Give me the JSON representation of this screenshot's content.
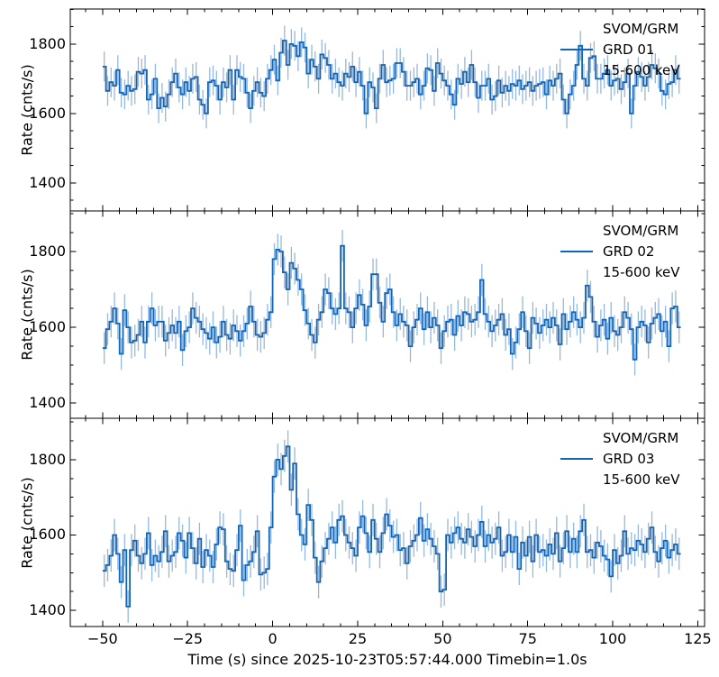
{
  "chart_data": {
    "type": "line",
    "subtype": "step-lightcurve-with-errorbars",
    "title": "",
    "xlabel": "Time (s) since 2025-10-23T05:57:44.000 Timebin=1.0s",
    "ylabel": "Rate (cnts/s)",
    "t0_utc": "2025-10-23T05:57:44.000",
    "t_bin_s": 1.0,
    "t_start": -50,
    "xlim": [
      -59.5,
      127
    ],
    "x_ticks": [
      -50,
      -25,
      0,
      25,
      50,
      75,
      100,
      125
    ],
    "x_tick_labels": [
      "−50",
      "−25",
      "0",
      "25",
      "50",
      "75",
      "100",
      "125"
    ],
    "x_minor_step": 5,
    "y_ticks": [
      1400,
      1600,
      1800
    ],
    "y_minor_step": 50,
    "grid": false,
    "legend_position": "upper right",
    "colors": {
      "line": "#1464b4",
      "errorbar": "rgba(20,100,180,0.45)",
      "spine": "#000000",
      "text": "#000000"
    },
    "panels": [
      {
        "name": "GRD 01",
        "legend": [
          "SVOM/GRM",
          "GRD 01",
          "15-600 keV"
        ],
        "ylim": [
          1319,
          1901
        ],
        "yerr": 43,
        "rates": [
          1735,
          1665,
          1690,
          1680,
          1725,
          1660,
          1655,
          1680,
          1665,
          1670,
          1720,
          1715,
          1725,
          1640,
          1655,
          1700,
          1615,
          1645,
          1620,
          1655,
          1690,
          1715,
          1675,
          1655,
          1690,
          1665,
          1700,
          1705,
          1640,
          1625,
          1600,
          1690,
          1695,
          1680,
          1640,
          1690,
          1675,
          1725,
          1640,
          1725,
          1705,
          1700,
          1660,
          1615,
          1665,
          1690,
          1660,
          1650,
          1700,
          1725,
          1755,
          1695,
          1775,
          1810,
          1740,
          1800,
          1795,
          1765,
          1805,
          1790,
          1715,
          1755,
          1735,
          1700,
          1770,
          1760,
          1740,
          1700,
          1715,
          1690,
          1680,
          1715,
          1705,
          1735,
          1690,
          1720,
          1680,
          1600,
          1690,
          1675,
          1615,
          1700,
          1740,
          1690,
          1695,
          1700,
          1745,
          1745,
          1720,
          1680,
          1680,
          1690,
          1700,
          1655,
          1680,
          1730,
          1725,
          1665,
          1745,
          1715,
          1695,
          1680,
          1655,
          1625,
          1700,
          1685,
          1720,
          1690,
          1740,
          1690,
          1645,
          1680,
          1680,
          1700,
          1640,
          1650,
          1695,
          1660,
          1680,
          1665,
          1685,
          1680,
          1695,
          1670,
          1680,
          1690,
          1665,
          1680,
          1685,
          1690,
          1655,
          1695,
          1680,
          1700,
          1715,
          1640,
          1600,
          1655,
          1680,
          1740,
          1795,
          1700,
          1680,
          1760,
          1765,
          1700,
          1700,
          1715,
          1725,
          1680,
          1695,
          1700,
          1670,
          1690,
          1715,
          1600,
          1680,
          1720,
          1705,
          1680,
          1705,
          1740,
          1730,
          1715,
          1665,
          1655,
          1685,
          1690,
          1725,
          1700
        ]
      },
      {
        "name": "GRD 02",
        "legend": [
          "SVOM/GRM",
          "GRD 02",
          "15-600 keV"
        ],
        "ylim": [
          1360,
          1907
        ],
        "yerr": 42,
        "rates": [
          1545,
          1595,
          1615,
          1650,
          1610,
          1530,
          1645,
          1600,
          1560,
          1565,
          1580,
          1615,
          1560,
          1615,
          1650,
          1605,
          1615,
          1615,
          1565,
          1585,
          1605,
          1585,
          1615,
          1540,
          1590,
          1600,
          1650,
          1625,
          1615,
          1595,
          1585,
          1570,
          1600,
          1560,
          1575,
          1615,
          1580,
          1570,
          1605,
          1590,
          1565,
          1590,
          1610,
          1655,
          1615,
          1580,
          1575,
          1585,
          1620,
          1640,
          1780,
          1805,
          1800,
          1745,
          1700,
          1770,
          1755,
          1725,
          1700,
          1645,
          1610,
          1580,
          1560,
          1620,
          1640,
          1700,
          1690,
          1650,
          1635,
          1650,
          1815,
          1650,
          1640,
          1600,
          1650,
          1685,
          1660,
          1605,
          1655,
          1740,
          1740,
          1665,
          1615,
          1690,
          1700,
          1640,
          1605,
          1635,
          1615,
          1605,
          1550,
          1600,
          1620,
          1650,
          1595,
          1640,
          1600,
          1625,
          1605,
          1545,
          1590,
          1615,
          1620,
          1580,
          1630,
          1605,
          1640,
          1635,
          1615,
          1620,
          1640,
          1725,
          1635,
          1615,
          1590,
          1605,
          1620,
          1635,
          1580,
          1595,
          1530,
          1560,
          1595,
          1640,
          1590,
          1545,
          1625,
          1610,
          1585,
          1605,
          1620,
          1600,
          1625,
          1605,
          1555,
          1635,
          1595,
          1615,
          1640,
          1620,
          1600,
          1625,
          1710,
          1680,
          1615,
          1575,
          1605,
          1620,
          1570,
          1625,
          1590,
          1580,
          1600,
          1640,
          1625,
          1595,
          1515,
          1600,
          1615,
          1605,
          1560,
          1610,
          1625,
          1635,
          1590,
          1615,
          1550,
          1650,
          1655,
          1600
        ]
      },
      {
        "name": "GRD 03",
        "legend": [
          "SVOM/GRM",
          "GRD 03",
          "15-600 keV"
        ],
        "ylim": [
          1357,
          1910
        ],
        "yerr": 43,
        "rates": [
          1505,
          1520,
          1545,
          1600,
          1550,
          1475,
          1560,
          1410,
          1560,
          1585,
          1545,
          1525,
          1550,
          1605,
          1520,
          1545,
          1530,
          1555,
          1610,
          1530,
          1545,
          1555,
          1605,
          1585,
          1540,
          1605,
          1565,
          1525,
          1590,
          1515,
          1560,
          1545,
          1515,
          1575,
          1620,
          1615,
          1530,
          1510,
          1505,
          1560,
          1625,
          1480,
          1520,
          1530,
          1555,
          1610,
          1495,
          1500,
          1510,
          1620,
          1755,
          1800,
          1775,
          1810,
          1835,
          1720,
          1790,
          1655,
          1600,
          1575,
          1680,
          1640,
          1540,
          1475,
          1530,
          1565,
          1590,
          1620,
          1580,
          1640,
          1650,
          1600,
          1580,
          1565,
          1545,
          1620,
          1650,
          1605,
          1555,
          1640,
          1590,
          1555,
          1605,
          1655,
          1625,
          1595,
          1600,
          1560,
          1565,
          1525,
          1570,
          1585,
          1600,
          1645,
          1585,
          1615,
          1590,
          1570,
          1550,
          1450,
          1455,
          1600,
          1580,
          1605,
          1620,
          1590,
          1580,
          1615,
          1595,
          1570,
          1600,
          1635,
          1570,
          1600,
          1580,
          1590,
          1620,
          1545,
          1555,
          1600,
          1555,
          1595,
          1510,
          1580,
          1545,
          1595,
          1530,
          1600,
          1555,
          1560,
          1545,
          1575,
          1550,
          1605,
          1530,
          1565,
          1610,
          1555,
          1590,
          1555,
          1610,
          1640,
          1555,
          1560,
          1540,
          1580,
          1570,
          1545,
          1535,
          1490,
          1560,
          1525,
          1545,
          1610,
          1550,
          1565,
          1560,
          1585,
          1575,
          1555,
          1590,
          1620,
          1555,
          1530,
          1565,
          1585,
          1540,
          1560,
          1575,
          1550
        ]
      }
    ]
  }
}
